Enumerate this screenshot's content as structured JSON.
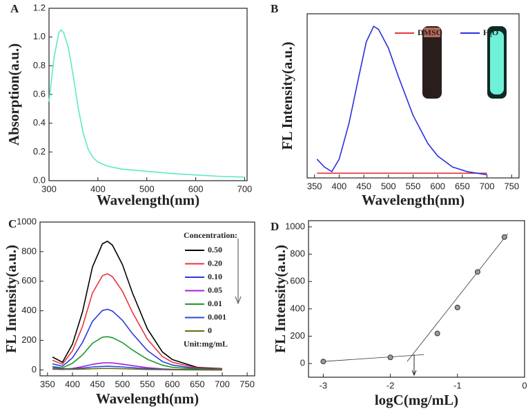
{
  "chart_data": [
    {
      "type": "line",
      "panel": "A",
      "xlabel": "Wavelength(nm)",
      "ylabel": "Absorption(a.u.)",
      "x": [
        300,
        310,
        320,
        325,
        330,
        340,
        350,
        360,
        370,
        380,
        390,
        400,
        420,
        450,
        500,
        550,
        600,
        650,
        700
      ],
      "series": [
        {
          "color": "#5ee8c8",
          "values": [
            0.55,
            0.85,
            1.03,
            1.05,
            1.03,
            0.92,
            0.72,
            0.5,
            0.33,
            0.22,
            0.16,
            0.13,
            0.1,
            0.08,
            0.065,
            0.05,
            0.04,
            0.03,
            0.025
          ]
        }
      ],
      "xlim": [
        300,
        705
      ],
      "xticks": [
        300,
        400,
        500,
        600,
        700
      ],
      "ylim": [
        0,
        1.2
      ],
      "yticks": [
        {
          "value": 0,
          "label": "0.0"
        },
        0.2,
        0.4,
        0.6,
        0.8,
        {
          "value": 1,
          "label": "1.0"
        },
        1.2
      ]
    },
    {
      "type": "line",
      "panel": "B",
      "xlabel": "Wavelength(nm)",
      "ylabel": "FL Intensity(a.u.)",
      "x": [
        355,
        370,
        385,
        400,
        420,
        440,
        455,
        470,
        480,
        500,
        520,
        550,
        580,
        600,
        630,
        660,
        700
      ],
      "series": [
        {
          "name": "DMSO",
          "color": "#e8343c",
          "values": [
            3,
            3,
            3,
            3,
            3,
            3,
            3,
            3,
            3,
            3,
            3,
            3,
            3,
            3,
            3,
            3,
            3
          ]
        },
        {
          "name": "H₂O",
          "color": "#2a2ee0",
          "values": [
            12,
            7,
            4,
            12,
            35,
            65,
            87,
            97,
            95,
            83,
            65,
            40,
            22,
            14,
            7,
            4,
            2
          ]
        }
      ],
      "xlim": [
        335,
        765
      ],
      "xticks": [
        350,
        400,
        450,
        500,
        550,
        600,
        650,
        700,
        750
      ],
      "ylim": [
        0,
        105
      ]
    },
    {
      "type": "line",
      "panel": "C",
      "xlabel": "Wavelength(nm)",
      "ylabel": "FL Intensity(a.u.)",
      "legend_title": "Concentration:",
      "unit_note": "Unit:mg/mL",
      "x": [
        360,
        380,
        400,
        420,
        440,
        460,
        470,
        480,
        500,
        520,
        550,
        580,
        600,
        650,
        700
      ],
      "series": [
        {
          "name": "0.50",
          "color": "#000000",
          "values": [
            87,
            52,
            174,
            392,
            696,
            853,
            870,
            844,
            713,
            522,
            278,
            122,
            70,
            17,
            9
          ]
        },
        {
          "name": "0.20",
          "color": "#e8343c",
          "values": [
            65,
            39,
            130,
            293,
            520,
            637,
            650,
            631,
            533,
            390,
            208,
            91,
            52,
            13,
            7
          ]
        },
        {
          "name": "0.10",
          "color": "#2a36e0",
          "values": [
            41,
            25,
            82,
            185,
            328,
            402,
            410,
            398,
            336,
            246,
            131,
            57,
            33,
            8,
            4
          ]
        },
        {
          "name": "0.05",
          "color": "#a020d8",
          "values": [
            5,
            3,
            10,
            22,
            38,
            47,
            48,
            47,
            39,
            29,
            15,
            7,
            4,
            1,
            0
          ]
        },
        {
          "name": "0.01",
          "color": "#1a9a2a",
          "values": [
            23,
            14,
            45,
            101,
            180,
            221,
            225,
            218,
            185,
            135,
            72,
            32,
            18,
            5,
            2
          ]
        },
        {
          "name": "0.001",
          "color": "#2a4ad8",
          "values": [
            18,
            8,
            8,
            12,
            20,
            24,
            25,
            24,
            20,
            15,
            8,
            4,
            2,
            1,
            0
          ]
        },
        {
          "name": "0",
          "color": "#6b6a10",
          "values": [
            8,
            4,
            4,
            5,
            8,
            10,
            10,
            10,
            8,
            6,
            3,
            2,
            1,
            0,
            0
          ]
        }
      ],
      "xlim": [
        335,
        765
      ],
      "xticks": [
        350,
        400,
        450,
        500,
        550,
        600,
        650,
        700,
        750
      ],
      "ylim": [
        -40,
        1000
      ],
      "yticks": [
        0,
        200,
        400,
        600,
        800,
        1000
      ]
    },
    {
      "type": "scatter",
      "panel": "D",
      "xlabel": "logC(mg/mL)",
      "ylabel": "FL Intensity(a.u.)",
      "x": [
        -3,
        -2,
        -1.3,
        -1,
        -0.7,
        -0.3
      ],
      "series": [
        {
          "color": "#333333",
          "values": [
            15,
            45,
            220,
            410,
            670,
            925
          ]
        }
      ],
      "fit_lines": [
        {
          "x": [
            -3,
            -1.5
          ],
          "values": [
            15,
            65
          ]
        },
        {
          "x": [
            -1.75,
            -0.25
          ],
          "values": [
            15,
            950
          ]
        }
      ],
      "xlim": [
        -3.22,
        0
      ],
      "xticks": [
        -3,
        -2,
        -1,
        0
      ],
      "ylim": [
        -100,
        1045
      ],
      "yticks": [
        0,
        200,
        400,
        600,
        800,
        1000
      ]
    }
  ]
}
